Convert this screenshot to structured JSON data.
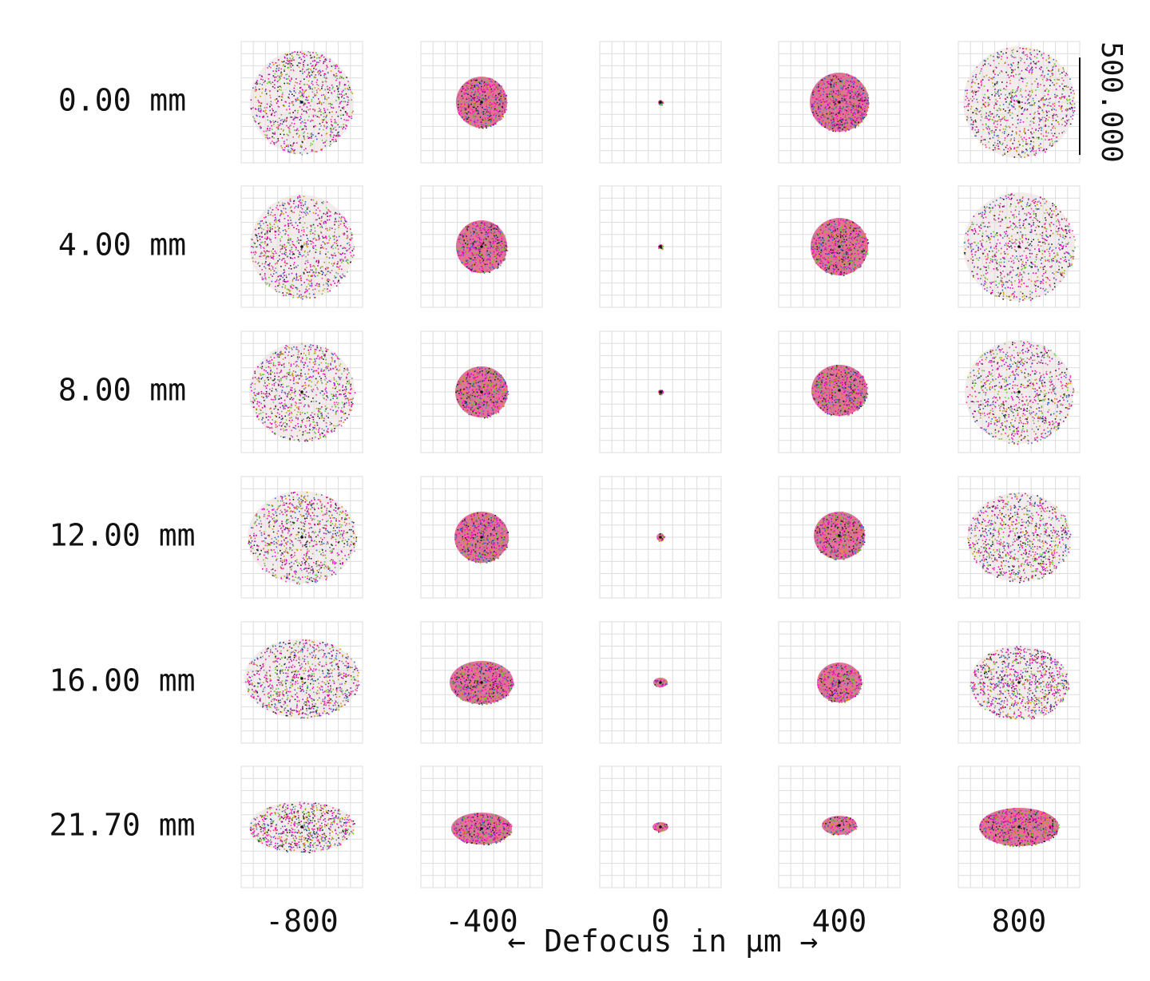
{
  "chart_data": {
    "type": "scatter",
    "subtype": "spot-diagram-matrix",
    "xlabel": "← Defocus in µm →",
    "defocus_um": [
      -800,
      -400,
      0,
      400,
      800
    ],
    "defocus_labels": [
      "-800",
      "-400",
      "0",
      "400",
      "800"
    ],
    "field_heights_mm": [
      0.0,
      4.0,
      8.0,
      12.0,
      16.0,
      21.7
    ],
    "field_labels": [
      "0.00 mm",
      "4.00 mm",
      "8.00 mm",
      "12.00 mm",
      "16.00 mm",
      "21.70 mm"
    ],
    "scale_bar_label": "500.000",
    "grid": true,
    "grid_divisions": 10,
    "ray_colors": [
      "#ff00cc",
      "#ff3399",
      "#cc00aa",
      "#66cc33",
      "#cc9900",
      "#3366cc",
      "#888888",
      "#222222"
    ],
    "spots": [
      [
        {
          "rx": 65,
          "ry": 65,
          "dy": 0,
          "dense": false
        },
        {
          "rx": 32,
          "ry": 32,
          "dy": 0,
          "dense": true
        },
        {
          "rx": 3,
          "ry": 3,
          "dy": 0,
          "dense": true
        },
        {
          "rx": 37,
          "ry": 37,
          "dy": 0,
          "dense": true
        },
        {
          "rx": 70,
          "ry": 70,
          "dy": 0,
          "dense": false
        }
      ],
      [
        {
          "rx": 65,
          "ry": 65,
          "dy": 0,
          "dense": false
        },
        {
          "rx": 32,
          "ry": 33,
          "dy": 0,
          "dense": true
        },
        {
          "rx": 3,
          "ry": 3,
          "dy": 0,
          "dense": true
        },
        {
          "rx": 36,
          "ry": 36,
          "dy": 0,
          "dense": true
        },
        {
          "rx": 70,
          "ry": 68,
          "dy": 0,
          "dense": false
        }
      ],
      [
        {
          "rx": 66,
          "ry": 62,
          "dy": 0,
          "dense": false
        },
        {
          "rx": 33,
          "ry": 32,
          "dy": 0,
          "dense": true
        },
        {
          "rx": 3,
          "ry": 3,
          "dy": 0,
          "dense": true
        },
        {
          "rx": 35,
          "ry": 32,
          "dy": -2,
          "dense": true
        },
        {
          "rx": 68,
          "ry": 65,
          "dy": 0,
          "dense": false
        }
      ],
      [
        {
          "rx": 68,
          "ry": 58,
          "dy": 0,
          "dense": false
        },
        {
          "rx": 34,
          "ry": 32,
          "dy": 0,
          "dense": true
        },
        {
          "rx": 5,
          "ry": 5,
          "dy": 0,
          "dense": true
        },
        {
          "rx": 32,
          "ry": 30,
          "dy": -2,
          "dense": true
        },
        {
          "rx": 65,
          "ry": 56,
          "dy": 0,
          "dense": false
        }
      ],
      [
        {
          "rx": 72,
          "ry": 50,
          "dy": -5,
          "dense": false
        },
        {
          "rx": 40,
          "ry": 27,
          "dy": 0,
          "dense": true
        },
        {
          "rx": 9,
          "ry": 6,
          "dy": 0,
          "dense": true
        },
        {
          "rx": 28,
          "ry": 25,
          "dy": 0,
          "dense": true
        },
        {
          "rx": 62,
          "ry": 46,
          "dy": 0,
          "dense": false
        }
      ],
      [
        {
          "rx": 66,
          "ry": 32,
          "dy": 0,
          "dense": false
        },
        {
          "rx": 38,
          "ry": 20,
          "dy": 2,
          "dense": true
        },
        {
          "rx": 10,
          "ry": 6,
          "dy": 0,
          "dense": true
        },
        {
          "rx": 22,
          "ry": 12,
          "dy": -2,
          "dense": true
        },
        {
          "rx": 50,
          "ry": 24,
          "dy": 0,
          "dense": true
        }
      ]
    ]
  }
}
